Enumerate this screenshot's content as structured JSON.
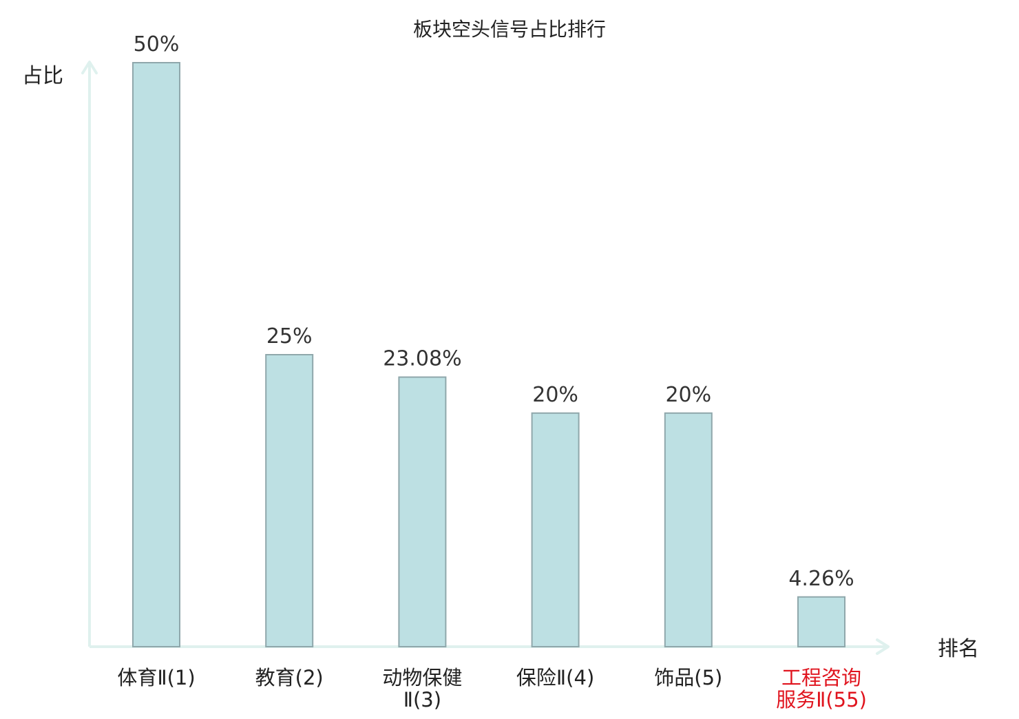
{
  "chart_data": {
    "type": "bar",
    "title": "板块空头信号占比排行",
    "ylabel": "占比",
    "xlabel": "排名",
    "categories": [
      {
        "lines": [
          "体育Ⅱ(1)"
        ],
        "highlight": false
      },
      {
        "lines": [
          "教育(2)"
        ],
        "highlight": false
      },
      {
        "lines": [
          "动物保健",
          "Ⅱ(3)"
        ],
        "highlight": false
      },
      {
        "lines": [
          "保险Ⅱ(4)"
        ],
        "highlight": false
      },
      {
        "lines": [
          "饰品(5)"
        ],
        "highlight": false
      },
      {
        "lines": [
          "工程咨询",
          "服务Ⅱ(55)"
        ],
        "highlight": true
      }
    ],
    "values": [
      50,
      25,
      23.08,
      20,
      20,
      4.26
    ],
    "value_labels": [
      "50%",
      "25%",
      "23.08%",
      "20%",
      "20%",
      "4.26%"
    ],
    "ylim": [
      0,
      50
    ],
    "grid": false,
    "colors": {
      "bar_fill": "#bde0e3",
      "bar_stroke": "#8fa7ab",
      "axis": "#dff1ee",
      "text": "#222222",
      "value_text": "#333333",
      "highlight": "#e0141e"
    }
  }
}
